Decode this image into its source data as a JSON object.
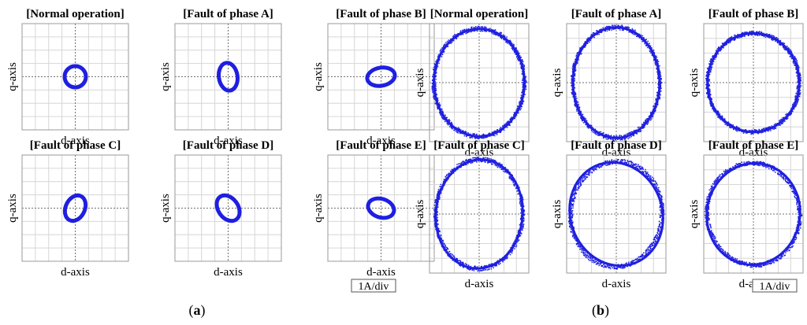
{
  "scale_label": "1A/div",
  "colors": {
    "trace": "#1f1fe0",
    "grid": "#d6d6d6",
    "frame": "#9a9a9a",
    "center": "#707070"
  },
  "panels": [
    {
      "caption_letter": "a",
      "chart_data": [
        {
          "type": "scatter",
          "title": "[Normal operation]",
          "xlabel": "d-axis",
          "ylabel": "q-axis",
          "grid": true,
          "xlim": [
            -4,
            4
          ],
          "ylim": [
            -4,
            4
          ],
          "shape": {
            "cx": 0,
            "cy": 0,
            "rx": 0.8,
            "ry": 0.8,
            "angle_deg": 0
          }
        },
        {
          "type": "scatter",
          "title": "[Fault of phase A]",
          "xlabel": "d-axis",
          "ylabel": "q-axis",
          "grid": true,
          "xlim": [
            -4,
            4
          ],
          "ylim": [
            -4,
            4
          ],
          "shape": {
            "cx": 0,
            "cy": 0,
            "rx": 0.7,
            "ry": 1.05,
            "angle_deg": 8
          }
        },
        {
          "type": "scatter",
          "title": "[Fault of phase B]",
          "xlabel": "d-axis",
          "ylabel": "q-axis",
          "grid": true,
          "xlim": [
            -4,
            4
          ],
          "ylim": [
            -4,
            4
          ],
          "shape": {
            "cx": 0,
            "cy": 0,
            "rx": 1.05,
            "ry": 0.68,
            "angle_deg": 10
          }
        },
        {
          "type": "scatter",
          "title": "[Fault of phase C]",
          "xlabel": "d-axis",
          "ylabel": "q-axis",
          "grid": true,
          "xlim": [
            -4,
            4
          ],
          "ylim": [
            -4,
            4
          ],
          "shape": {
            "cx": 0,
            "cy": 0,
            "rx": 0.72,
            "ry": 1.0,
            "angle_deg": -25
          }
        },
        {
          "type": "scatter",
          "title": "[Fault of phase D]",
          "xlabel": "d-axis",
          "ylabel": "q-axis",
          "grid": true,
          "xlim": [
            -4,
            4
          ],
          "ylim": [
            -4,
            4
          ],
          "shape": {
            "cx": 0,
            "cy": 0,
            "rx": 0.75,
            "ry": 1.05,
            "angle_deg": 35
          }
        },
        {
          "type": "scatter",
          "title": "[Fault of phase E]",
          "xlabel": "d-axis",
          "ylabel": "q-axis",
          "grid": true,
          "xlim": [
            -4,
            4
          ],
          "ylim": [
            -4,
            4
          ],
          "shape": {
            "cx": 0,
            "cy": 0,
            "rx": 1.0,
            "ry": 0.7,
            "angle_deg": -18
          }
        }
      ]
    },
    {
      "caption_letter": "b",
      "chart_data": [
        {
          "type": "scatter",
          "title": "[Normal operation]",
          "xlabel": "d-axis",
          "ylabel": "q-axis",
          "grid": true,
          "xlim": [
            -4,
            4
          ],
          "ylim": [
            -4,
            4
          ],
          "shape": {
            "cx": 0,
            "cy": 0,
            "rx": 3.65,
            "ry": 3.65,
            "angle_deg": 0
          }
        },
        {
          "type": "scatter",
          "title": "[Fault of phase A]",
          "xlabel": "d-axis",
          "ylabel": "q-axis",
          "grid": true,
          "xlim": [
            -4,
            4
          ],
          "ylim": [
            -4,
            4
          ],
          "shape": {
            "cx": 0,
            "cy": 0,
            "rx": 3.5,
            "ry": 3.75,
            "angle_deg": 0
          }
        },
        {
          "type": "scatter",
          "title": "[Fault of phase B]",
          "xlabel": "d-axis",
          "ylabel": "q-axis",
          "grid": true,
          "xlim": [
            -4,
            4
          ],
          "ylim": [
            -4,
            4
          ],
          "shape": {
            "cx": 0,
            "cy": 0,
            "rx": 3.7,
            "ry": 3.35,
            "angle_deg": 0
          }
        },
        {
          "type": "scatter",
          "title": "[Fault of phase C]",
          "xlabel": "d-axis",
          "ylabel": "q-axis",
          "grid": true,
          "xlim": [
            -4,
            4
          ],
          "ylim": [
            -4,
            4
          ],
          "shape": {
            "cx": 0,
            "cy": 0,
            "rx": 3.5,
            "ry": 3.7,
            "angle_deg": -5
          }
        },
        {
          "type": "scatter",
          "title": "[Fault of phase D]",
          "xlabel": "d-axis",
          "ylabel": "q-axis",
          "grid": true,
          "xlim": [
            -4,
            4
          ],
          "ylim": [
            -4,
            4
          ],
          "shape": {
            "cx": 0,
            "cy": 0,
            "rx": 3.7,
            "ry": 3.55,
            "angle_deg": 20
          }
        },
        {
          "type": "scatter",
          "title": "[Fault of phase E]",
          "xlabel": "d-axis",
          "ylabel": "q-axis",
          "grid": true,
          "xlim": [
            -4,
            4
          ],
          "ylim": [
            -4,
            4
          ],
          "shape": {
            "cx": 0,
            "cy": 0,
            "rx": 3.75,
            "ry": 3.45,
            "angle_deg": -10
          }
        }
      ]
    }
  ]
}
